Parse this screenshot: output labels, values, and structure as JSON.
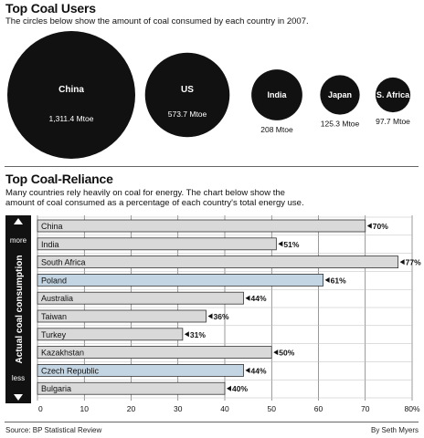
{
  "top_users": {
    "title": "Top Coal Users",
    "subtitle": "The circles below show the amount of coal consumed by each country in 2007."
  },
  "reliance": {
    "title": "Top Coal-Reliance",
    "subtitle_line1": "Many countries rely heavily on coal for energy. The chart below show the",
    "subtitle_line2": "amount of coal consumed as a percentage of each country's total energy use.",
    "side_label": "Actual coal consumption",
    "more_label": "more",
    "less_label": "less"
  },
  "footer": {
    "source": "Source: BP Statistical Review",
    "byline": "By Seth Myers"
  },
  "chart_data": [
    {
      "type": "bubble",
      "title": "Top Coal Users",
      "unit": "Mtoe",
      "categories": [
        "China",
        "US",
        "India",
        "Japan",
        "S. Africa"
      ],
      "values": [
        1311.4,
        573.7,
        208,
        125.3,
        97.7
      ],
      "value_labels": [
        "1,311.4 Mtoe",
        "573.7 Mtoe",
        "208 Mtoe",
        "125.3 Mtoe",
        "97.7 Mtoe"
      ]
    },
    {
      "type": "bar",
      "orientation": "horizontal",
      "title": "Top Coal-Reliance",
      "categories": [
        "China",
        "India",
        "South Africa",
        "Poland",
        "Australia",
        "Taiwan",
        "Turkey",
        "Kazakhstan",
        "Czech Republic",
        "Bulgaria"
      ],
      "values": [
        70,
        51,
        77,
        61,
        44,
        36,
        31,
        50,
        44,
        40
      ],
      "value_labels": [
        "70%",
        "51%",
        "77%",
        "61%",
        "44%",
        "36%",
        "31%",
        "50%",
        "44%",
        "40%"
      ],
      "highlighted": [
        "Poland",
        "Czech Republic"
      ],
      "xlim": [
        0,
        80
      ],
      "xticks": [
        "0",
        "10",
        "20",
        "30",
        "40",
        "50",
        "60",
        "70",
        "80%"
      ],
      "grid": true,
      "colors": {
        "bar": "#d9d9d9",
        "highlight": "#c3d5e2",
        "bar_stroke": "#333333",
        "bubble": "#111111"
      }
    }
  ]
}
